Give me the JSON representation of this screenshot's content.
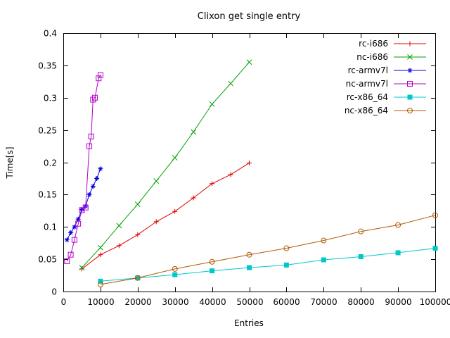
{
  "chart_data": {
    "type": "line",
    "title": "Clixon get single entry",
    "xlabel": "Entries",
    "ylabel": "Time[s]",
    "xlim": [
      0,
      100000
    ],
    "ylim": [
      0,
      0.4
    ],
    "grid": false,
    "legend_position": "top-right-inside",
    "x_ticks": [
      {
        "value": 0,
        "label": "0"
      },
      {
        "value": 10000,
        "label": "10000"
      },
      {
        "value": 20000,
        "label": "20000"
      },
      {
        "value": 30000,
        "label": "30000"
      },
      {
        "value": 40000,
        "label": "40000"
      },
      {
        "value": 50000,
        "label": "50000"
      },
      {
        "value": 60000,
        "label": "60000"
      },
      {
        "value": 70000,
        "label": "70000"
      },
      {
        "value": 80000,
        "label": "80000"
      },
      {
        "value": 90000,
        "label": "90000"
      },
      {
        "value": 100000,
        "label": "100000"
      }
    ],
    "y_ticks": [
      {
        "value": 0,
        "label": "0"
      },
      {
        "value": 0.05,
        "label": "0.05"
      },
      {
        "value": 0.1,
        "label": "0.1"
      },
      {
        "value": 0.15,
        "label": "0.15"
      },
      {
        "value": 0.2,
        "label": "0.2"
      },
      {
        "value": 0.25,
        "label": "0.25"
      },
      {
        "value": 0.3,
        "label": "0.3"
      },
      {
        "value": 0.35,
        "label": "0.35"
      },
      {
        "value": 0.4,
        "label": "0.4"
      }
    ],
    "series": [
      {
        "name": "rc-i686",
        "color": "#e00000",
        "marker": "plus",
        "points": [
          [
            5000,
            0.035
          ],
          [
            10000,
            0.057
          ],
          [
            15000,
            0.071
          ],
          [
            20000,
            0.088
          ],
          [
            25000,
            0.108
          ],
          [
            30000,
            0.124
          ],
          [
            35000,
            0.145
          ],
          [
            40000,
            0.167
          ],
          [
            45000,
            0.181
          ],
          [
            50000,
            0.199
          ]
        ]
      },
      {
        "name": "nc-i686",
        "color": "#00a000",
        "marker": "cross",
        "points": [
          [
            5000,
            0.037
          ],
          [
            10000,
            0.068
          ],
          [
            15000,
            0.102
          ],
          [
            20000,
            0.135
          ],
          [
            25000,
            0.171
          ],
          [
            30000,
            0.207
          ],
          [
            35000,
            0.247
          ],
          [
            40000,
            0.29
          ],
          [
            45000,
            0.322
          ],
          [
            50000,
            0.355
          ]
        ]
      },
      {
        "name": "rc-armv7l",
        "color": "#0000e6",
        "marker": "asterisk",
        "points": [
          [
            1000,
            0.08
          ],
          [
            2000,
            0.091
          ],
          [
            3000,
            0.1
          ],
          [
            4000,
            0.112
          ],
          [
            5000,
            0.127
          ],
          [
            6000,
            0.132
          ],
          [
            7000,
            0.15
          ],
          [
            8000,
            0.163
          ],
          [
            9000,
            0.175
          ],
          [
            10000,
            0.19
          ]
        ]
      },
      {
        "name": "nc-armv7l",
        "color": "#b400c8",
        "marker": "square-open",
        "points": [
          [
            1000,
            0.047
          ],
          [
            2000,
            0.057
          ],
          [
            3000,
            0.08
          ],
          [
            4000,
            0.105
          ],
          [
            5000,
            0.126
          ],
          [
            6000,
            0.13
          ],
          [
            7000,
            0.225
          ],
          [
            7500,
            0.24
          ],
          [
            8000,
            0.297
          ],
          [
            8500,
            0.3
          ],
          [
            9500,
            0.33
          ],
          [
            10000,
            0.335
          ]
        ]
      },
      {
        "name": "rc-x86_64",
        "color": "#00c8c8",
        "marker": "square-filled",
        "points": [
          [
            10000,
            0.016
          ],
          [
            20000,
            0.021
          ],
          [
            30000,
            0.026
          ],
          [
            40000,
            0.032
          ],
          [
            50000,
            0.037
          ],
          [
            60000,
            0.041
          ],
          [
            70000,
            0.049
          ],
          [
            80000,
            0.054
          ],
          [
            90000,
            0.06
          ],
          [
            100000,
            0.067
          ]
        ]
      },
      {
        "name": "nc-x86_64",
        "color": "#b05a00",
        "marker": "circle-open",
        "points": [
          [
            10000,
            0.011
          ],
          [
            20000,
            0.021
          ],
          [
            30000,
            0.035
          ],
          [
            40000,
            0.046
          ],
          [
            50000,
            0.057
          ],
          [
            60000,
            0.067
          ],
          [
            70000,
            0.079
          ],
          [
            80000,
            0.093
          ],
          [
            90000,
            0.103
          ],
          [
            100000,
            0.118
          ]
        ]
      }
    ]
  }
}
